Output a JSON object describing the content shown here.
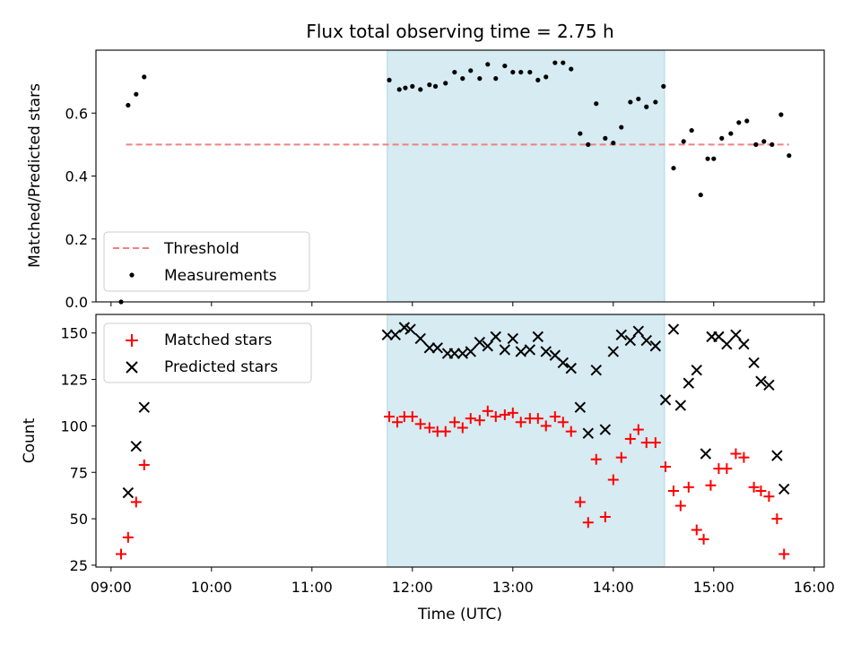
{
  "chart_data": [
    {
      "type": "scatter",
      "title": "Flux total observing time = 2.75 h",
      "xlabel": "",
      "ylabel": "Matched/Predicted stars",
      "xlim": [
        8.85,
        16.1
      ],
      "ylim": [
        0.0,
        0.8
      ],
      "yticks": [
        0.0,
        0.2,
        0.4,
        0.6
      ],
      "ytick_labels": [
        "0.0",
        "0.2",
        "0.4",
        "0.6"
      ],
      "shaded_span": [
        11.75,
        14.51
      ],
      "legend_position": "lower-left",
      "threshold": {
        "name": "Threshold",
        "y": 0.5,
        "x": [
          9.15,
          15.75
        ],
        "color": "#f08080"
      },
      "series": [
        {
          "name": "Measurements",
          "color": "#000000",
          "x": [
            9.1,
            9.17,
            9.25,
            9.33,
            11.77,
            11.87,
            11.93,
            12.0,
            12.08,
            12.17,
            12.23,
            12.33,
            12.42,
            12.5,
            12.58,
            12.67,
            12.75,
            12.83,
            12.92,
            13.0,
            13.08,
            13.17,
            13.25,
            13.33,
            13.42,
            13.5,
            13.58,
            13.67,
            13.75,
            13.83,
            13.92,
            14.0,
            14.08,
            14.17,
            14.25,
            14.33,
            14.42,
            14.5,
            14.6,
            14.7,
            14.78,
            14.87,
            14.94,
            15.0,
            15.08,
            15.17,
            15.25,
            15.33,
            15.42,
            15.5,
            15.58,
            15.67,
            15.75
          ],
          "y": [
            0.0,
            0.625,
            0.66,
            0.715,
            0.705,
            0.675,
            0.68,
            0.685,
            0.675,
            0.69,
            0.685,
            0.695,
            0.73,
            0.71,
            0.735,
            0.71,
            0.755,
            0.71,
            0.75,
            0.73,
            0.73,
            0.73,
            0.705,
            0.715,
            0.76,
            0.76,
            0.74,
            0.535,
            0.5,
            0.63,
            0.52,
            0.505,
            0.555,
            0.635,
            0.645,
            0.62,
            0.635,
            0.685,
            0.425,
            0.51,
            0.545,
            0.34,
            0.455,
            0.455,
            0.52,
            0.535,
            0.57,
            0.575,
            0.5,
            0.51,
            0.5,
            0.595,
            0.465
          ]
        }
      ]
    },
    {
      "type": "scatter",
      "title": "",
      "xlabel": "Time (UTC)",
      "ylabel": "Count",
      "xlim": [
        8.85,
        16.1
      ],
      "ylim": [
        24,
        160
      ],
      "yticks": [
        25,
        50,
        75,
        100,
        125,
        150
      ],
      "xticks": [
        9,
        10,
        11,
        12,
        13,
        14,
        15,
        16
      ],
      "xtick_labels": [
        "09:00",
        "10:00",
        "11:00",
        "12:00",
        "13:00",
        "14:00",
        "15:00",
        "16:00"
      ],
      "shaded_span": [
        11.75,
        14.51
      ],
      "legend_position": "upper-left",
      "series": [
        {
          "name": "Matched stars",
          "marker": "+",
          "color": "#ff0000",
          "x": [
            9.1,
            9.17,
            9.25,
            9.33,
            11.77,
            11.85,
            11.92,
            12.0,
            12.08,
            12.17,
            12.25,
            12.33,
            12.42,
            12.5,
            12.58,
            12.67,
            12.75,
            12.83,
            12.92,
            13.0,
            13.08,
            13.17,
            13.25,
            13.33,
            13.42,
            13.5,
            13.58,
            13.67,
            13.75,
            13.83,
            13.92,
            14.0,
            14.08,
            14.17,
            14.25,
            14.33,
            14.42,
            14.52,
            14.6,
            14.67,
            14.75,
            14.83,
            14.9,
            14.97,
            15.05,
            15.13,
            15.22,
            15.3,
            15.4,
            15.47,
            15.55,
            15.63,
            15.7
          ],
          "y": [
            31,
            40,
            59,
            79,
            105,
            102,
            105,
            105,
            101,
            99,
            97,
            97,
            102,
            99,
            104,
            103,
            108,
            105,
            106,
            107,
            102,
            104,
            104,
            100,
            105,
            102,
            97,
            59,
            48,
            82,
            51,
            71,
            83,
            93,
            98,
            91,
            91,
            78,
            65,
            57,
            67,
            44,
            39,
            68,
            77,
            77,
            85,
            83,
            67,
            65,
            62,
            50,
            31
          ]
        },
        {
          "name": "Predicted stars",
          "marker": "x",
          "color": "#000000",
          "x": [
            9.17,
            9.25,
            9.33,
            11.75,
            11.83,
            11.92,
            11.98,
            12.08,
            12.17,
            12.25,
            12.35,
            12.42,
            12.5,
            12.58,
            12.67,
            12.75,
            12.83,
            12.92,
            13.0,
            13.08,
            13.17,
            13.25,
            13.33,
            13.42,
            13.5,
            13.58,
            13.67,
            13.75,
            13.83,
            13.92,
            14.0,
            14.08,
            14.17,
            14.25,
            14.33,
            14.42,
            14.52,
            14.6,
            14.67,
            14.75,
            14.83,
            14.92,
            14.98,
            15.05,
            15.13,
            15.22,
            15.3,
            15.4,
            15.47,
            15.55,
            15.63,
            15.7
          ],
          "y": [
            64,
            89,
            110,
            149,
            149,
            153,
            152,
            147,
            142,
            142,
            139,
            139,
            139,
            140,
            145,
            143,
            148,
            141,
            147,
            140,
            141,
            148,
            140,
            138,
            134,
            131,
            110,
            96,
            130,
            98,
            140,
            149,
            146,
            151,
            146,
            143,
            114,
            152,
            111,
            123,
            130,
            85,
            148,
            148,
            144,
            149,
            144,
            134,
            124,
            122,
            84,
            66
          ]
        }
      ]
    }
  ]
}
